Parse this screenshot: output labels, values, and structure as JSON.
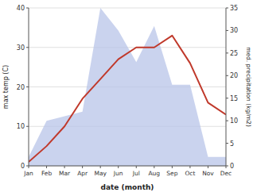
{
  "chart_data": {
    "type": "line",
    "categories": [
      "Jan",
      "Feb",
      "Mar",
      "Apr",
      "May",
      "Jun",
      "Jul",
      "Aug",
      "Sep",
      "Oct",
      "Nov",
      "Dec"
    ],
    "xlabel": "date (month)",
    "ylabel": "max temp (C)",
    "y2label": "med. precipitation (kg/m2)",
    "ylim": [
      0,
      40
    ],
    "yticks": [
      0,
      10,
      20,
      30,
      40
    ],
    "y2lim": [
      0,
      35
    ],
    "y2ticks": [
      0,
      5,
      10,
      15,
      20,
      25,
      30,
      35
    ],
    "grid": true,
    "series": [
      {
        "type": "area",
        "axis": "y2",
        "color": "#b8c4e8",
        "values": [
          2,
          10,
          11,
          12,
          35,
          30,
          23,
          31,
          18,
          18,
          2,
          2
        ]
      },
      {
        "type": "line",
        "color": "#c0392b",
        "values": [
          1,
          5,
          10,
          17,
          22,
          27,
          30,
          30,
          33,
          26,
          16,
          13
        ]
      }
    ]
  }
}
